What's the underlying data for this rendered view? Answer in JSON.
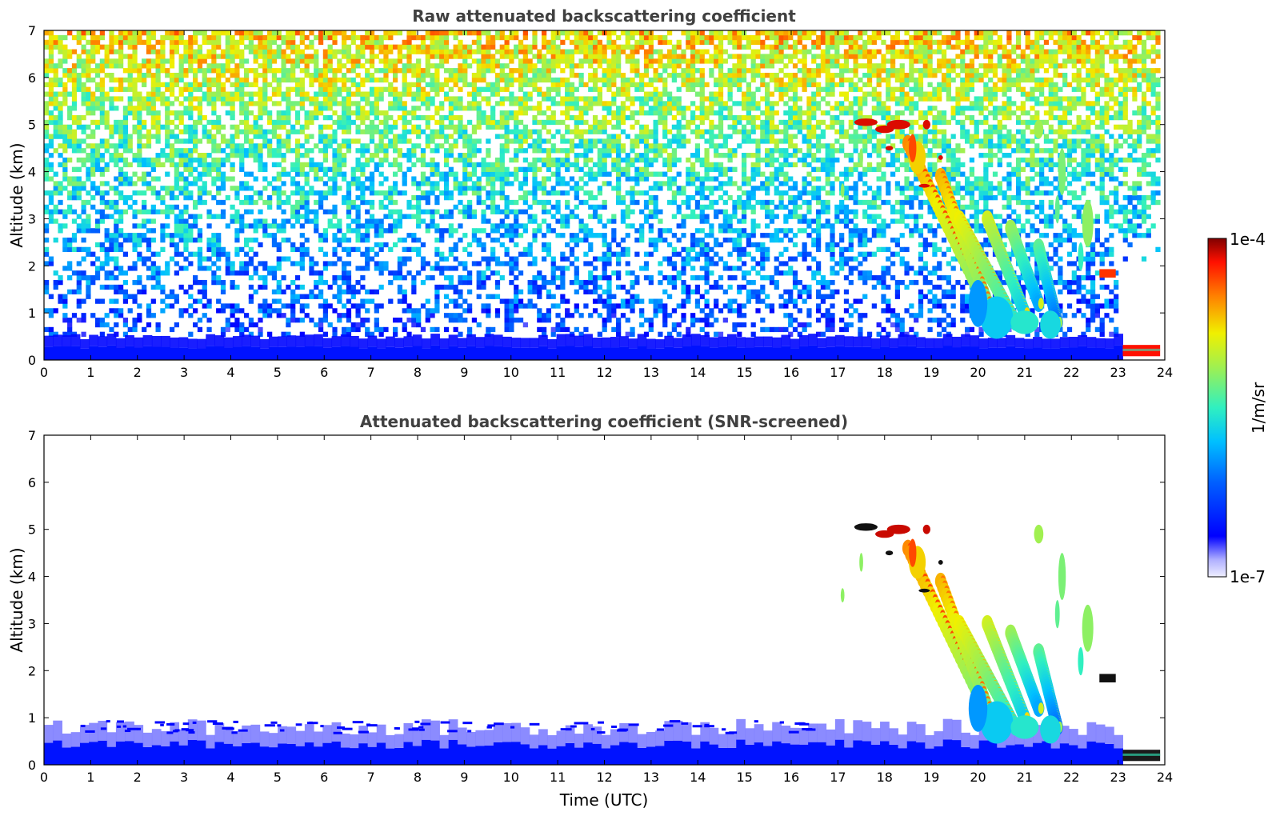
{
  "chart_data": [
    {
      "type": "heatmap",
      "title": "Raw attenuated backscattering coefficient",
      "xlabel": "",
      "ylabel": "Altitude (km)",
      "xlim": [
        0,
        24
      ],
      "ylim": [
        0,
        7
      ],
      "xticks": [
        0,
        1,
        2,
        3,
        4,
        5,
        6,
        7,
        8,
        9,
        10,
        11,
        12,
        13,
        14,
        15,
        16,
        17,
        18,
        19,
        20,
        21,
        22,
        23,
        24
      ],
      "yticks": [
        0,
        1,
        2,
        3,
        4,
        5,
        6,
        7
      ],
      "variable": "attenuated backscattering coefficient",
      "screened": false,
      "features": [
        {
          "kind": "boundary_layer",
          "t_start": 0,
          "t_end": 23.1,
          "alt_top_km": 0.5,
          "level": "1e-6"
        },
        {
          "kind": "elevated_layer",
          "t_start": 23.1,
          "t_end": 23.9,
          "alt_km": [
            0.1,
            0.3
          ],
          "level": "1e-4"
        },
        {
          "kind": "cloud_top_layer",
          "t_start": 17.4,
          "t_end": 19.2,
          "alt_km": [
            4.4,
            5.2
          ],
          "level": "1e-4"
        },
        {
          "kind": "cloud_fall_streaks",
          "t_start": 18.5,
          "t_end": 21.8,
          "alt_km": [
            0.5,
            4.2
          ],
          "level": "5e-5"
        },
        {
          "kind": "cirrus_streaks",
          "t_start": 21.0,
          "t_end": 22.7,
          "alt_km": [
            2.2,
            5.3
          ],
          "level": "2e-5"
        },
        {
          "kind": "background_noise",
          "t_start": 0,
          "t_end": 23.9,
          "alt_km": [
            0.5,
            7.0
          ],
          "level": "1e-6 to 3e-5"
        }
      ]
    },
    {
      "type": "heatmap",
      "title": "Attenuated backscattering coefficient (SNR-screened)",
      "xlabel": "Time (UTC)",
      "ylabel": "Altitude (km)",
      "xlim": [
        0,
        24
      ],
      "ylim": [
        0,
        7
      ],
      "xticks": [
        0,
        1,
        2,
        3,
        4,
        5,
        6,
        7,
        8,
        9,
        10,
        11,
        12,
        13,
        14,
        15,
        16,
        17,
        18,
        19,
        20,
        21,
        22,
        23,
        24
      ],
      "yticks": [
        0,
        1,
        2,
        3,
        4,
        5,
        6,
        7
      ],
      "variable": "attenuated backscattering coefficient",
      "screened": true,
      "features": [
        {
          "kind": "boundary_layer",
          "t_start": 0,
          "t_end": 23.1,
          "alt_top_km": 0.8,
          "level": "1e-6"
        },
        {
          "kind": "elevated_layer",
          "t_start": 23.1,
          "t_end": 23.9,
          "alt_km": [
            0.1,
            0.3
          ],
          "level": "1e-4"
        },
        {
          "kind": "cloud_top_layer",
          "t_start": 17.4,
          "t_end": 19.2,
          "alt_km": [
            4.4,
            5.2
          ],
          "level": "1e-4"
        },
        {
          "kind": "cloud_fall_streaks",
          "t_start": 18.5,
          "t_end": 21.8,
          "alt_km": [
            0.5,
            4.2
          ],
          "level": "5e-5"
        },
        {
          "kind": "cirrus_streaks",
          "t_start": 21.0,
          "t_end": 22.7,
          "alt_km": [
            1.7,
            5.3
          ],
          "level": "2e-5"
        }
      ]
    }
  ],
  "colorbar": {
    "label": "1/m/sr",
    "max_label": "1e-4",
    "min_label": "1e-7",
    "scale": "log",
    "colormap": "jet",
    "range": [
      1e-07,
      0.0001
    ]
  }
}
